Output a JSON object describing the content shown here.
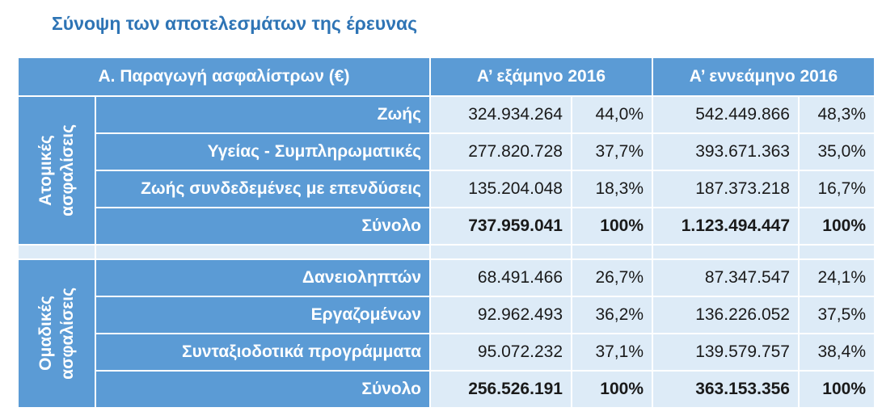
{
  "title": "Σύνοψη των αποτελεσμάτων της έρευνας",
  "table": {
    "header": {
      "label": "Α. Παραγωγή ασφαλίστρων (€)",
      "period1": "Α’ εξάμηνο 2016",
      "period2": "Α’ εννεάμηνο 2016"
    },
    "groups": [
      {
        "name_line1": "Ατομικές",
        "name_line2": "ασφαλίσεις",
        "rows": [
          {
            "label": "Ζωής",
            "v1": "324.934.264",
            "p1": "44,0%",
            "v2": "542.449.866",
            "p2": "48,3%"
          },
          {
            "label": "Υγείας - Συμπληρωματικές",
            "v1": "277.820.728",
            "p1": "37,7%",
            "v2": "393.671.363",
            "p2": "35,0%"
          },
          {
            "label": "Ζωής συνδεδεμένες με επενδύσεις",
            "v1": "135.204.048",
            "p1": "18,3%",
            "v2": "187.373.218",
            "p2": "16,7%"
          },
          {
            "label": "Σύνολο",
            "v1": "737.959.041",
            "p1": "100%",
            "v2": "1.123.494.447",
            "p2": "100%"
          }
        ]
      },
      {
        "name_line1": "Ομαδικές",
        "name_line2": "ασφαλίσεις",
        "rows": [
          {
            "label": "Δανειοληπτών",
            "v1": "68.491.466",
            "p1": "26,7%",
            "v2": "87.347.547",
            "p2": "24,1%"
          },
          {
            "label": "Εργαζομένων",
            "v1": "92.962.493",
            "p1": "36,2%",
            "v2": "136.226.052",
            "p2": "37,5%"
          },
          {
            "label": "Συνταξιοδοτικά προγράμματα",
            "v1": "95.072.232",
            "p1": "37,1%",
            "v2": "139.579.757",
            "p2": "38,4%"
          },
          {
            "label": "Σύνολο",
            "v1": "256.526.191",
            "p1": "100%",
            "v2": "363.153.356",
            "p2": "100%"
          }
        ]
      }
    ]
  }
}
